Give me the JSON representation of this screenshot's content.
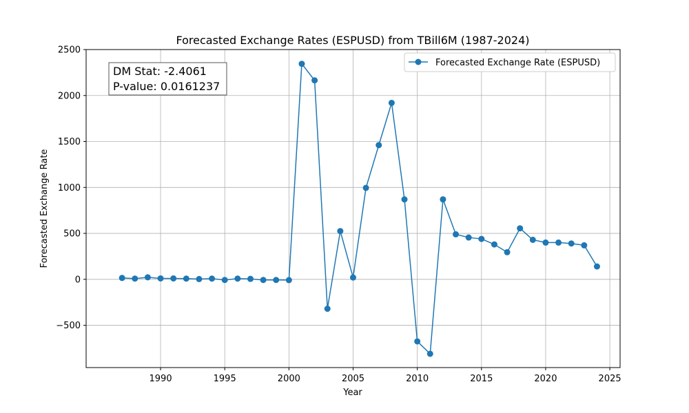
{
  "chart_data": {
    "type": "line",
    "title": "Forecasted Exchange Rates (ESPUSD) from TBill6M (1987-2024)",
    "xlabel": "Year",
    "ylabel": "Forecasted Exchange Rate",
    "xlim": [
      1984.2,
      2025.8
    ],
    "ylim": [
      -960,
      2500
    ],
    "xticks": [
      1990,
      1995,
      2000,
      2005,
      2010,
      2015,
      2020,
      2025
    ],
    "yticks": [
      -500,
      0,
      500,
      1000,
      1500,
      2000,
      2500
    ],
    "grid": true,
    "legend_position": "top-right",
    "series": [
      {
        "name": "Forecasted Exchange Rate (ESPUSD)",
        "color": "#1f77b4",
        "marker": "circle",
        "x": [
          1987,
          1988,
          1989,
          1990,
          1991,
          1992,
          1993,
          1994,
          1995,
          1996,
          1997,
          1998,
          1999,
          2000,
          2001,
          2002,
          2003,
          2004,
          2005,
          2006,
          2007,
          2008,
          2009,
          2010,
          2011,
          2012,
          2013,
          2014,
          2015,
          2016,
          2017,
          2018,
          2019,
          2020,
          2021,
          2022,
          2023,
          2024
        ],
        "y": [
          15,
          8,
          22,
          10,
          10,
          8,
          3,
          8,
          -7,
          8,
          5,
          -7,
          -7,
          -8,
          2345,
          2165,
          -320,
          525,
          20,
          995,
          1460,
          1920,
          870,
          -675,
          -810,
          870,
          490,
          455,
          440,
          380,
          295,
          555,
          430,
          400,
          400,
          390,
          370,
          140
        ]
      }
    ],
    "annotation": {
      "line1": "DM Stat: -2.4061",
      "line2": "P-value: 0.0161237"
    }
  }
}
